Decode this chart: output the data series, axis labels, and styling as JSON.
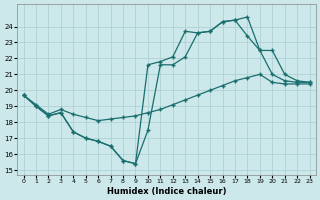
{
  "xlabel": "Humidex (Indice chaleur)",
  "bg_color": "#cce8ea",
  "grid_color": "#aacdd0",
  "line_color": "#1a6e6e",
  "ylim": [
    15,
    25
  ],
  "xlim": [
    -0.5,
    23.5
  ],
  "yticks": [
    15,
    16,
    17,
    18,
    19,
    20,
    21,
    22,
    23,
    24
  ],
  "xticks": [
    0,
    1,
    2,
    3,
    4,
    5,
    6,
    7,
    8,
    9,
    10,
    11,
    12,
    13,
    14,
    15,
    16,
    17,
    18,
    19,
    20,
    21,
    22,
    23
  ],
  "line1_x": [
    0,
    1,
    2,
    3,
    4,
    5,
    6,
    7,
    8,
    9,
    10,
    11,
    12,
    13,
    14,
    15,
    16,
    17,
    18,
    19,
    20,
    21,
    22,
    23
  ],
  "line1_y": [
    19.7,
    19.0,
    18.4,
    18.6,
    17.4,
    17.0,
    16.8,
    16.5,
    15.6,
    15.4,
    21.6,
    21.8,
    22.1,
    23.7,
    23.6,
    23.7,
    24.3,
    24.4,
    24.6,
    22.5,
    22.5,
    21.0,
    20.6,
    20.5
  ],
  "line2_x": [
    0,
    1,
    2,
    3,
    4,
    5,
    6,
    7,
    8,
    9,
    10,
    11,
    12,
    13,
    14,
    15,
    16,
    17,
    18,
    19,
    20,
    21,
    22,
    23
  ],
  "line2_y": [
    19.7,
    19.0,
    18.4,
    18.6,
    17.4,
    17.0,
    16.8,
    16.5,
    15.6,
    15.4,
    17.5,
    21.6,
    21.6,
    22.1,
    23.6,
    23.7,
    24.3,
    24.4,
    23.4,
    22.5,
    21.0,
    20.6,
    20.5,
    20.5
  ],
  "line3_x": [
    0,
    1,
    2,
    3,
    4,
    5,
    6,
    7,
    8,
    9,
    10,
    11,
    12,
    13,
    14,
    15,
    16,
    17,
    18,
    19,
    20,
    21,
    22,
    23
  ],
  "line3_y": [
    19.7,
    19.1,
    18.5,
    18.8,
    18.5,
    18.3,
    18.1,
    18.2,
    18.3,
    18.4,
    18.6,
    18.8,
    19.1,
    19.4,
    19.7,
    20.0,
    20.3,
    20.6,
    20.8,
    21.0,
    20.5,
    20.4,
    20.4,
    20.4
  ]
}
